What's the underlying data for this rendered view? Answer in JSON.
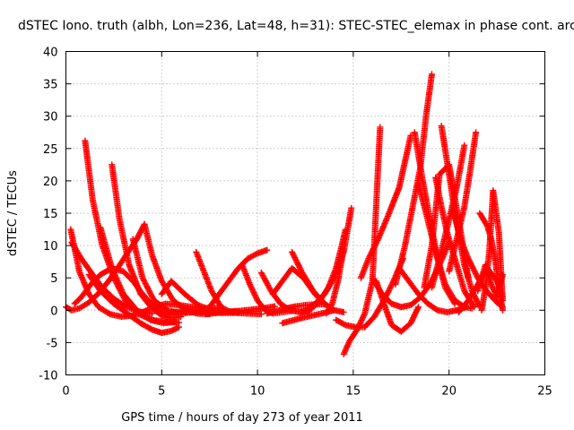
{
  "chart_data": {
    "type": "scatter",
    "title": "dSTEC Iono. truth (albh, Lon=236, Lat=48, h=31): STEC-STEC_elemax in phase cont. arc",
    "xlabel": "GPS time / hours of day 273 of year 2011",
    "ylabel": "dSTEC  / TECUs",
    "xlim": [
      0,
      25
    ],
    "ylim": [
      -10,
      40
    ],
    "x_ticks": [
      0,
      5,
      10,
      15,
      20,
      25
    ],
    "y_ticks": [
      -10,
      -5,
      0,
      5,
      10,
      15,
      20,
      25,
      30,
      35,
      40
    ],
    "grid": true,
    "marker": "plus",
    "series_color": "#ff0000",
    "arcs": [
      {
        "x": [
          0.0,
          0.3,
          0.7,
          1.2,
          1.7,
          2.2,
          2.7,
          3.2,
          3.7,
          4.1
        ],
        "y": [
          0.5,
          0.0,
          0.3,
          1.2,
          2.6,
          4.4,
          6.5,
          8.8,
          11.0,
          13.3
        ]
      },
      {
        "x": [
          0.25,
          0.7,
          1.2,
          1.7,
          2.3,
          2.9,
          3.5,
          4.0,
          4.4
        ],
        "y": [
          12.5,
          6.0,
          2.5,
          0.5,
          -0.6,
          -1.0,
          -0.8,
          -0.3,
          0.2
        ]
      },
      {
        "x": [
          0.3,
          0.8,
          1.4,
          1.9,
          2.5,
          3.1,
          3.8,
          4.5
        ],
        "y": [
          10.5,
          8.0,
          5.5,
          3.5,
          1.8,
          0.6,
          -0.2,
          -0.5
        ]
      },
      {
        "x": [
          0.45,
          0.8,
          1.3,
          1.8,
          2.4,
          3.0,
          3.5,
          4.0,
          4.5,
          5.0,
          5.5,
          6.0
        ],
        "y": [
          1.0,
          2.0,
          4.0,
          5.5,
          6.5,
          6.0,
          4.5,
          2.5,
          0.8,
          -0.3,
          -0.7,
          -0.5
        ]
      },
      {
        "x": [
          1.0,
          1.4,
          1.9,
          2.5,
          3.1,
          3.8,
          4.5,
          5.2,
          5.9
        ],
        "y": [
          26.2,
          17.0,
          10.0,
          5.0,
          1.5,
          -0.6,
          -1.5,
          -1.8,
          -1.9
        ]
      },
      {
        "x": [
          1.8,
          2.4,
          3.0,
          3.7,
          4.4,
          5.1,
          5.7
        ],
        "y": [
          12.8,
          6.5,
          2.5,
          0.0,
          -1.5,
          -2.0,
          -1.8
        ]
      },
      {
        "x": [
          1.2,
          1.8,
          2.5,
          3.2,
          3.9,
          4.5,
          5.0,
          5.5,
          5.9
        ],
        "y": [
          5.5,
          3.0,
          1.0,
          -0.5,
          -2.0,
          -3.0,
          -3.5,
          -3.2,
          -2.6
        ]
      },
      {
        "x": [
          2.4,
          2.8,
          3.3,
          3.9,
          4.5,
          5.0,
          5.5,
          6.0
        ],
        "y": [
          22.5,
          14.0,
          7.0,
          2.5,
          0.3,
          -0.8,
          -1.2,
          -1.0
        ]
      },
      {
        "x": [
          3.5,
          4.0,
          4.6,
          5.3,
          6.0,
          6.7
        ],
        "y": [
          11.0,
          5.0,
          1.5,
          0.0,
          -0.5,
          -0.3
        ]
      },
      {
        "x": [
          4.1,
          4.5,
          5.0,
          5.6,
          6.2,
          6.8,
          7.5
        ],
        "y": [
          13.3,
          8.5,
          4.5,
          1.5,
          0.2,
          -0.5,
          -0.6
        ]
      },
      {
        "x": [
          4.6,
          5.2,
          5.9,
          6.6,
          7.3,
          8.0
        ],
        "y": [
          0.5,
          1.0,
          0.8,
          0.5,
          0.3,
          0.4
        ]
      },
      {
        "x": [
          5.0,
          5.5,
          6.2,
          6.9,
          7.6,
          8.3,
          9.0
        ],
        "y": [
          2.5,
          4.5,
          2.5,
          0.8,
          0.0,
          -0.2,
          -0.3
        ]
      },
      {
        "x": [
          5.5,
          6.1,
          6.7,
          7.4,
          8.1,
          8.8,
          9.5,
          10.2
        ],
        "y": [
          -0.3,
          -0.2,
          -0.2,
          -0.3,
          -0.4,
          -0.4,
          -0.5,
          -0.6
        ]
      },
      {
        "x": [
          6.8,
          7.2,
          7.6,
          8.1,
          8.6,
          9.1
        ],
        "y": [
          9.0,
          6.0,
          3.0,
          0.5,
          -0.3,
          -0.2
        ]
      },
      {
        "x": [
          7.0,
          7.5,
          8.0,
          8.5,
          9.0,
          9.5,
          10.0,
          10.5
        ],
        "y": [
          -0.4,
          0.5,
          2.5,
          4.5,
          6.5,
          8.0,
          8.8,
          9.3
        ]
      },
      {
        "x": [
          7.3,
          7.9,
          8.5,
          9.1,
          9.7,
          10.3,
          10.9
        ],
        "y": [
          -0.6,
          -0.4,
          -0.2,
          -0.1,
          0.1,
          0.3,
          0.6
        ]
      },
      {
        "x": [
          9.2,
          9.6,
          10.0,
          10.4,
          10.8,
          11.3,
          11.8
        ],
        "y": [
          7.0,
          4.0,
          1.5,
          0.0,
          -0.5,
          -0.3,
          -0.1
        ]
      },
      {
        "x": [
          10.2,
          10.7,
          11.2,
          11.7,
          12.2,
          12.7
        ],
        "y": [
          5.8,
          3.0,
          1.0,
          0.0,
          -0.3,
          -0.2
        ]
      },
      {
        "x": [
          10.5,
          11.0,
          11.5,
          12.0,
          12.5,
          13.0,
          13.5
        ],
        "y": [
          -0.5,
          -0.1,
          0.3,
          0.6,
          0.8,
          0.9,
          0.9
        ]
      },
      {
        "x": [
          10.8,
          11.3,
          11.8,
          12.4,
          13.0,
          13.7
        ],
        "y": [
          2.5,
          4.5,
          6.5,
          5.0,
          2.5,
          0.5
        ]
      },
      {
        "x": [
          11.3,
          11.8,
          12.3,
          12.9,
          13.5,
          14.0
        ],
        "y": [
          -2.0,
          -1.6,
          -1.2,
          -0.8,
          -0.4,
          0.0
        ]
      },
      {
        "x": [
          11.8,
          12.3,
          12.9,
          13.5,
          14.0,
          14.5
        ],
        "y": [
          9.0,
          6.0,
          3.0,
          1.0,
          0.0,
          -0.3
        ]
      },
      {
        "x": [
          12.2,
          12.7,
          13.2,
          13.7,
          14.1,
          14.4,
          14.6
        ],
        "y": [
          -0.3,
          0.0,
          1.2,
          3.5,
          6.5,
          10.0,
          12.5
        ]
      },
      {
        "x": [
          12.6,
          13.0,
          13.5,
          14.0,
          14.5,
          14.9
        ],
        "y": [
          0.3,
          1.0,
          2.5,
          5.0,
          9.0,
          15.8
        ]
      },
      {
        "x": [
          13.6,
          13.9,
          14.2,
          14.5
        ],
        "y": [
          -0.5,
          1.0,
          4.5,
          9.5
        ]
      },
      {
        "x": [
          14.5,
          14.8,
          15.2,
          15.6,
          16.0,
          16.4
        ],
        "y": [
          -6.8,
          -4.8,
          -3.0,
          -0.5,
          4.5,
          28.3
        ]
      },
      {
        "x": [
          14.1,
          14.6,
          15.1,
          15.6,
          16.1,
          16.6,
          17.1,
          17.6
        ],
        "y": [
          -1.5,
          -2.3,
          -2.6,
          -2.6,
          -1.0,
          1.5,
          4.5,
          8.0
        ]
      },
      {
        "x": [
          15.4,
          15.8,
          16.3,
          16.8,
          17.4,
          18.0
        ],
        "y": [
          5.0,
          8.0,
          11.0,
          14.5,
          19.0,
          27.0
        ]
      },
      {
        "x": [
          16.2,
          16.6,
          17.0,
          17.5,
          18.0,
          18.4
        ],
        "y": [
          4.5,
          1.0,
          -2.3,
          -3.3,
          -2.0,
          0.5
        ]
      },
      {
        "x": [
          16.0,
          16.5,
          17.0,
          17.5,
          18.0,
          18.5,
          19.0,
          19.5,
          20.0
        ],
        "y": [
          5.0,
          2.5,
          1.0,
          0.5,
          0.8,
          2.0,
          4.0,
          7.0,
          10.5
        ]
      },
      {
        "x": [
          17.2,
          17.7,
          18.1,
          18.5,
          18.8,
          19.1
        ],
        "y": [
          4.0,
          10.0,
          16.0,
          22.0,
          30.0,
          36.5
        ]
      },
      {
        "x": [
          18.2,
          18.6,
          19.0,
          19.4,
          19.8,
          20.3
        ],
        "y": [
          27.5,
          20.5,
          14.0,
          8.0,
          3.5,
          1.0
        ]
      },
      {
        "x": [
          17.4,
          17.9,
          18.4,
          18.9,
          19.4,
          19.9,
          20.4,
          20.9
        ],
        "y": [
          6.5,
          4.5,
          2.5,
          1.0,
          0.0,
          -0.3,
          0.0,
          0.5
        ]
      },
      {
        "x": [
          18.4,
          18.8,
          19.3,
          19.8,
          20.3,
          20.8,
          21.2
        ],
        "y": [
          19.5,
          15.0,
          9.0,
          4.0,
          1.5,
          0.5,
          0.3
        ]
      },
      {
        "x": [
          18.7,
          19.1,
          19.5,
          20.0,
          20.5,
          21.0
        ],
        "y": [
          3.5,
          10.0,
          21.0,
          22.5,
          14.0,
          5.0
        ]
      },
      {
        "x": [
          19.1,
          19.5,
          20.0,
          20.4,
          20.8
        ],
        "y": [
          3.5,
          8.0,
          14.0,
          19.0,
          25.5
        ]
      },
      {
        "x": [
          19.3,
          19.6,
          19.9,
          20.3,
          20.8,
          21.3
        ],
        "y": [
          20.5,
          16.0,
          12.0,
          8.0,
          3.0,
          0.5
        ]
      },
      {
        "x": [
          19.6,
          20.0,
          20.4,
          20.8,
          21.2,
          21.6
        ],
        "y": [
          28.5,
          21.0,
          13.5,
          7.0,
          3.0,
          0.5
        ]
      },
      {
        "x": [
          20.0,
          20.4,
          20.8,
          21.1,
          21.4
        ],
        "y": [
          6.0,
          11.0,
          16.0,
          21.5,
          27.5
        ]
      },
      {
        "x": [
          20.2,
          20.6,
          21.0,
          21.5,
          22.0,
          22.5,
          22.8
        ],
        "y": [
          15.5,
          11.0,
          8.0,
          5.0,
          2.8,
          1.2,
          0.5
        ]
      },
      {
        "x": [
          20.5,
          21.0,
          21.5,
          22.0,
          22.5,
          22.8
        ],
        "y": [
          -0.3,
          1.5,
          4.0,
          6.5,
          4.5,
          2.0
        ]
      },
      {
        "x": [
          21.6,
          21.8,
          22.0,
          22.2,
          22.4,
          22.6,
          22.8
        ],
        "y": [
          15.0,
          14.0,
          13.0,
          11.0,
          8.0,
          3.5,
          0.0
        ]
      },
      {
        "x": [
          21.7,
          21.9,
          22.1,
          22.3,
          22.6,
          22.8
        ],
        "y": [
          0.0,
          3.5,
          9.0,
          18.5,
          12.0,
          1.5
        ]
      },
      {
        "x": [
          21.5,
          21.9,
          22.2,
          22.5,
          22.8
        ],
        "y": [
          3.0,
          7.0,
          4.0,
          2.0,
          5.5
        ]
      }
    ]
  }
}
